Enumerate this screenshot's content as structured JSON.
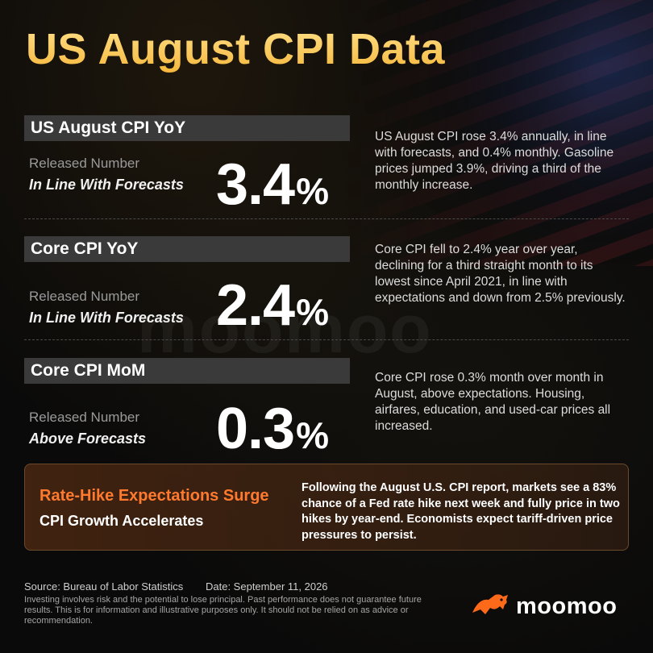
{
  "title": "US August CPI Data",
  "sections": [
    {
      "heading": "US August CPI YoY",
      "released_label": "Released Number",
      "status": "In Line With Forecasts",
      "value": "3.4",
      "unit": "%",
      "description": "US August CPI rose 3.4% annually, in line with forecasts, and 0.4% monthly. Gasoline prices jumped 3.9%, driving a third of the monthly increase."
    },
    {
      "heading": "Core CPI YoY",
      "released_label": "Released Number",
      "status": "In Line With Forecasts",
      "value": "2.4",
      "unit": "%",
      "description": "Core CPI fell to 2.4% year over year, declining for a third straight month to its lowest since April 2021, in line with expectations and down from 2.5% previously."
    },
    {
      "heading": "Core CPI MoM",
      "released_label": "Released Number",
      "status": "Above Forecasts",
      "value": "0.3",
      "unit": "%",
      "description": "Core CPI rose 0.3% month over month in August, above expectations. Housing, airfares, education, and used-car prices all increased."
    }
  ],
  "callout": {
    "headline": "Rate-Hike Expectations Surge",
    "subheadline": "CPI Growth Accelerates",
    "text": "Following the August U.S. CPI report, markets see a 83% chance of a Fed rate hike next week and fully price in two hikes by year-end. Economists expect tariff-driven price pressures to persist."
  },
  "footer": {
    "source": "Source: Bureau of Labor Statistics",
    "date": "Date: September 11, 2026",
    "disclaimer": "Investing involves risk and the potential to lose principal. Past performance does not guarantee future results. This is for information and illustrative purposes only. It should not be relied on as advice or recommendation."
  },
  "brand": {
    "name": "moomoo",
    "icon": "moomoo-bull-logo",
    "color": "#ff6a1a"
  },
  "watermark": "moomoo",
  "colors": {
    "title": "#f7c948",
    "accent": "#ff7a2e",
    "panel": "#3a3a3a"
  }
}
